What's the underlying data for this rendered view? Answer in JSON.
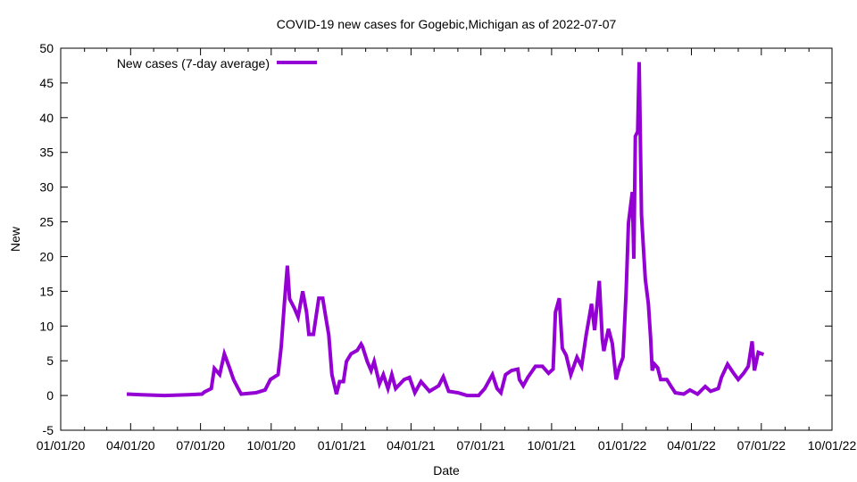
{
  "chart_data": {
    "type": "line",
    "title": "COVID-19 new cases for Gogebic,Michigan as of 2022-07-07",
    "xlabel": "Date",
    "ylabel": "New",
    "xlim": [
      "2020-01-01",
      "2022-10-01"
    ],
    "ylim": [
      -5,
      50
    ],
    "x_ticks": [
      "01/01/20",
      "04/01/20",
      "07/01/20",
      "10/01/20",
      "01/01/21",
      "04/01/21",
      "07/01/21",
      "10/01/21",
      "01/01/22",
      "04/01/22",
      "07/01/22",
      "10/01/22"
    ],
    "x_tick_dates": [
      "2020-01-01",
      "2020-04-01",
      "2020-07-01",
      "2020-10-01",
      "2021-01-01",
      "2021-04-01",
      "2021-07-01",
      "2021-10-01",
      "2022-01-01",
      "2022-04-01",
      "2022-07-01",
      "2022-10-01"
    ],
    "y_ticks": [
      -5,
      0,
      5,
      10,
      15,
      20,
      25,
      30,
      35,
      40,
      45,
      50
    ],
    "grid": false,
    "legend_position": "top-left",
    "color": "#9400d3",
    "series": [
      {
        "name": "New cases (7-day average)",
        "points": [
          [
            "2020-03-27",
            0.2
          ],
          [
            "2020-04-15",
            0.1
          ],
          [
            "2020-05-15",
            0.0
          ],
          [
            "2020-06-15",
            0.1
          ],
          [
            "2020-07-03",
            0.2
          ],
          [
            "2020-07-06",
            0.5
          ],
          [
            "2020-07-15",
            1.0
          ],
          [
            "2020-07-19",
            3.9
          ],
          [
            "2020-07-26",
            3.0
          ],
          [
            "2020-08-01",
            6.0
          ],
          [
            "2020-08-07",
            4.2
          ],
          [
            "2020-08-13",
            2.3
          ],
          [
            "2020-08-19",
            1.0
          ],
          [
            "2020-08-23",
            0.2
          ],
          [
            "2020-09-11",
            0.4
          ],
          [
            "2020-09-23",
            0.8
          ],
          [
            "2020-09-30",
            2.3
          ],
          [
            "2020-10-10",
            3.0
          ],
          [
            "2020-10-14",
            7.0
          ],
          [
            "2020-10-18",
            13.0
          ],
          [
            "2020-10-22",
            18.7
          ],
          [
            "2020-10-25",
            13.9
          ],
          [
            "2020-10-31",
            12.6
          ],
          [
            "2020-11-05",
            11.3
          ],
          [
            "2020-11-11",
            15.0
          ],
          [
            "2020-11-16",
            12.0
          ],
          [
            "2020-11-19",
            8.8
          ],
          [
            "2020-11-25",
            8.8
          ],
          [
            "2020-12-02",
            14.0
          ],
          [
            "2020-12-07",
            14.0
          ],
          [
            "2020-12-11",
            11.3
          ],
          [
            "2020-12-15",
            8.7
          ],
          [
            "2020-12-19",
            3.0
          ],
          [
            "2020-12-25",
            0.2
          ],
          [
            "2020-12-29",
            2.0
          ],
          [
            "2021-01-03",
            2.0
          ],
          [
            "2021-01-07",
            4.9
          ],
          [
            "2021-01-13",
            6.0
          ],
          [
            "2021-01-21",
            6.5
          ],
          [
            "2021-01-26",
            7.4
          ],
          [
            "2021-01-28",
            7.0
          ],
          [
            "2021-02-03",
            4.9
          ],
          [
            "2021-02-08",
            3.6
          ],
          [
            "2021-02-12",
            4.9
          ],
          [
            "2021-02-19",
            1.7
          ],
          [
            "2021-02-24",
            3.0
          ],
          [
            "2021-03-02",
            1.0
          ],
          [
            "2021-03-07",
            3.0
          ],
          [
            "2021-03-12",
            1.0
          ],
          [
            "2021-03-23",
            2.3
          ],
          [
            "2021-03-30",
            2.6
          ],
          [
            "2021-04-06",
            0.4
          ],
          [
            "2021-04-14",
            2.0
          ],
          [
            "2021-04-25",
            0.6
          ],
          [
            "2021-05-07",
            1.4
          ],
          [
            "2021-05-13",
            2.7
          ],
          [
            "2021-05-20",
            0.6
          ],
          [
            "2021-06-01",
            0.4
          ],
          [
            "2021-06-13",
            0.0
          ],
          [
            "2021-06-28",
            0.0
          ],
          [
            "2021-07-06",
            1.0
          ],
          [
            "2021-07-16",
            3.0
          ],
          [
            "2021-07-22",
            1.0
          ],
          [
            "2021-07-27",
            0.4
          ],
          [
            "2021-08-02",
            3.0
          ],
          [
            "2021-08-10",
            3.6
          ],
          [
            "2021-08-18",
            3.8
          ],
          [
            "2021-08-20",
            2.3
          ],
          [
            "2021-08-25",
            1.4
          ],
          [
            "2021-08-31",
            2.6
          ],
          [
            "2021-09-10",
            4.2
          ],
          [
            "2021-09-19",
            4.2
          ],
          [
            "2021-09-27",
            3.2
          ],
          [
            "2021-10-03",
            3.8
          ],
          [
            "2021-10-06",
            12.0
          ],
          [
            "2021-10-11",
            14.0
          ],
          [
            "2021-10-15",
            6.8
          ],
          [
            "2021-10-20",
            5.8
          ],
          [
            "2021-10-26",
            3.0
          ],
          [
            "2021-11-03",
            5.5
          ],
          [
            "2021-11-09",
            4.2
          ],
          [
            "2021-11-15",
            8.7
          ],
          [
            "2021-11-19",
            11.3
          ],
          [
            "2021-11-22",
            13.2
          ],
          [
            "2021-11-26",
            9.4
          ],
          [
            "2021-12-02",
            16.5
          ],
          [
            "2021-12-06",
            8.1
          ],
          [
            "2021-12-08",
            6.4
          ],
          [
            "2021-12-14",
            9.6
          ],
          [
            "2021-12-19",
            7.5
          ],
          [
            "2021-12-24",
            2.3
          ],
          [
            "2021-12-28",
            4.0
          ],
          [
            "2022-01-02",
            5.5
          ],
          [
            "2022-01-06",
            15.0
          ],
          [
            "2022-01-09",
            24.8
          ],
          [
            "2022-01-14",
            29.3
          ],
          [
            "2022-01-16",
            19.7
          ],
          [
            "2022-01-18",
            37.3
          ],
          [
            "2022-01-21",
            38.0
          ],
          [
            "2022-01-23",
            48.0
          ],
          [
            "2022-01-26",
            26.0
          ],
          [
            "2022-01-28",
            22.2
          ],
          [
            "2022-01-31",
            16.7
          ],
          [
            "2022-02-04",
            13.2
          ],
          [
            "2022-02-07",
            8.1
          ],
          [
            "2022-02-09",
            3.6
          ],
          [
            "2022-02-12",
            4.5
          ],
          [
            "2022-02-16",
            4.0
          ],
          [
            "2022-02-20",
            2.3
          ],
          [
            "2022-02-28",
            2.3
          ],
          [
            "2022-03-05",
            1.4
          ],
          [
            "2022-03-11",
            0.4
          ],
          [
            "2022-03-22",
            0.2
          ],
          [
            "2022-03-30",
            0.8
          ],
          [
            "2022-04-09",
            0.2
          ],
          [
            "2022-04-19",
            1.3
          ],
          [
            "2022-04-26",
            0.6
          ],
          [
            "2022-05-06",
            1.0
          ],
          [
            "2022-05-10",
            2.6
          ],
          [
            "2022-05-18",
            4.5
          ],
          [
            "2022-05-26",
            3.2
          ],
          [
            "2022-06-01",
            2.3
          ],
          [
            "2022-06-08",
            3.2
          ],
          [
            "2022-06-14",
            4.2
          ],
          [
            "2022-06-19",
            7.8
          ],
          [
            "2022-06-22",
            3.6
          ],
          [
            "2022-06-27",
            6.2
          ],
          [
            "2022-07-04",
            5.9
          ]
        ]
      }
    ]
  }
}
